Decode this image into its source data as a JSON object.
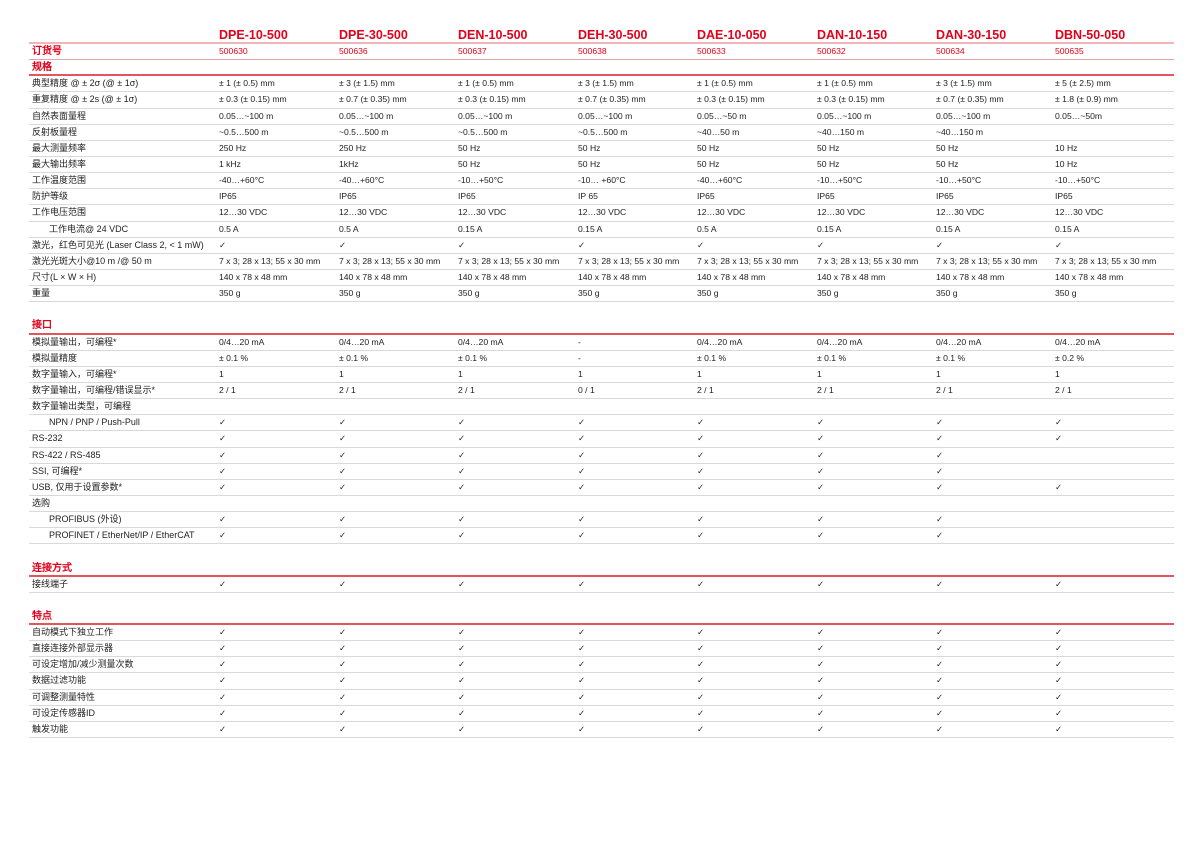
{
  "models": [
    "DPE-10-500",
    "DPE-30-500",
    "DEN-10-500",
    "DEH-30-500",
    "DAE-10-050",
    "DAN-10-150",
    "DAN-30-150",
    "DBN-50-050"
  ],
  "order": {
    "label": "订货号",
    "values": [
      "500630",
      "500636",
      "500637",
      "500638",
      "500633",
      "500632",
      "500634",
      "500635"
    ]
  },
  "check_symbol": "✓",
  "accent_color": "#e2001a",
  "sections": [
    {
      "title": "规格",
      "rows": [
        {
          "label": "典型精度 @ ± 2σ (@ ± 1σ)",
          "values": [
            "± 1 (± 0.5) mm",
            "± 3 (± 1.5) mm",
            "± 1 (± 0.5) mm",
            "± 3 (± 1.5) mm",
            "± 1 (± 0.5) mm",
            "± 1 (± 0.5) mm",
            "± 3 (± 1.5) mm",
            "± 5 (± 2.5) mm"
          ]
        },
        {
          "label": "重复精度 @ ± 2s (@ ± 1σ)",
          "values": [
            "± 0.3 (± 0.15) mm",
            "± 0.7 (± 0.35) mm",
            "± 0.3 (± 0.15) mm",
            "± 0.7 (± 0.35) mm",
            "± 0.3 (± 0.15) mm",
            "± 0.3 (± 0.15) mm",
            "± 0.7 (± 0.35) mm",
            "± 1.8 (± 0.9) mm"
          ]
        },
        {
          "label": "自然表面量程",
          "values": [
            "0.05…~100 m",
            "0.05…~100 m",
            "0.05…~100 m",
            "0.05…~100 m",
            "0.05…~50 m",
            "0.05…~100 m",
            "0.05…~100 m",
            "0.05…~50m"
          ]
        },
        {
          "label": "反射板量程",
          "values": [
            " ~0.5…500 m",
            " ~0.5…500 m",
            " ~0.5…500 m",
            " ~0.5…500 m",
            "~40…50 m",
            "~40…150 m",
            "~40…150 m",
            ""
          ]
        },
        {
          "label": "最大测量频率",
          "values": [
            "250 Hz",
            "250 Hz",
            "50 Hz",
            "50 Hz",
            "50 Hz",
            "50 Hz",
            "50 Hz",
            "10 Hz"
          ]
        },
        {
          "label": "最大输出频率",
          "values": [
            "1 kHz",
            "1kHz",
            "50 Hz",
            "50 Hz",
            "50 Hz",
            "50 Hz",
            "50 Hz",
            "10 Hz"
          ]
        },
        {
          "label": "工作温度范围",
          "values": [
            "-40…+60°C",
            "-40…+60°C",
            "-10…+50°C",
            "-10… +60°C",
            "-40…+60°C",
            "-10…+50°C",
            "-10…+50°C",
            "-10…+50°C"
          ]
        },
        {
          "label": "防护等级",
          "values": [
            "IP65",
            "IP65",
            "IP65",
            "IP 65",
            "IP65",
            "IP65",
            "IP65",
            "IP65"
          ]
        },
        {
          "label": "工作电压范围",
          "values": [
            "12…30 VDC",
            "12…30 VDC",
            "12…30 VDC",
            "12…30 VDC",
            "12…30 VDC",
            "12…30 VDC",
            "12…30 VDC",
            "12…30 VDC"
          ]
        },
        {
          "label": "工作电流@ 24 VDC",
          "sub": true,
          "values": [
            "0.5 A",
            "0.5 A",
            "0.15 A",
            "0.15 A",
            "0.5 A",
            "0.15 A",
            "0.15 A",
            "0.15 A"
          ]
        },
        {
          "label": "激光，红色可见光 (Laser Class 2, < 1 mW)",
          "values": [
            "✓",
            "✓",
            "✓",
            "✓",
            "✓",
            "✓",
            "✓",
            "✓"
          ]
        },
        {
          "label": "激光光斑大小@10 m /@ 50 m",
          "values": [
            "7 x 3; 28 x 13; 55 x 30 mm",
            "7 x 3; 28 x 13; 55 x 30 mm",
            "7 x 3; 28 x 13; 55 x 30 mm",
            "7 x 3; 28 x 13; 55 x 30 mm",
            "7 x 3; 28 x 13; 55 x 30 mm",
            "7 x 3; 28 x 13; 55 x 30 mm",
            "7 x 3; 28 x 13; 55 x 30 mm",
            "7 x 3; 28 x 13; 55 x 30 mm"
          ]
        },
        {
          "label": "尺寸(L × W × H)",
          "values": [
            "140 x 78 x 48 mm",
            "140 x 78 x 48 mm",
            "140 x 78 x 48 mm",
            "140 x 78 x 48 mm",
            "140 x 78 x 48 mm",
            "140 x 78 x 48 mm",
            "140 x 78 x 48 mm",
            "140 x 78 x 48 mm"
          ]
        },
        {
          "label": "重量",
          "values": [
            "350 g",
            "350 g",
            "350 g",
            "350 g",
            "350 g",
            "350 g",
            "350 g",
            "350 g"
          ]
        }
      ]
    },
    {
      "title": "接口",
      "rows": [
        {
          "label": "模拟量输出，可编程*",
          "values": [
            "0/4…20 mA",
            "0/4…20 mA",
            "0/4…20 mA",
            "-",
            "0/4…20 mA",
            "0/4…20 mA",
            "0/4…20 mA",
            "0/4…20 mA"
          ]
        },
        {
          "label": "模拟量精度",
          "values": [
            "± 0.1 %",
            "± 0.1 %",
            "± 0.1 %",
            "-",
            "± 0.1 %",
            "± 0.1 %",
            "± 0.1 %",
            "± 0.2 %"
          ]
        },
        {
          "label": "数字量输入，可编程*",
          "values": [
            "1",
            "1",
            "1",
            "1",
            "1",
            "1",
            "1",
            "1"
          ]
        },
        {
          "label": "数字量输出，可编程/错误显示*",
          "values": [
            "2 / 1",
            "2 / 1",
            "2 / 1",
            "0 / 1",
            "2 / 1",
            "2 / 1",
            "2 / 1",
            "2 / 1"
          ]
        },
        {
          "label": "数字量输出类型，可编程",
          "values": [
            "",
            "",
            "",
            "",
            "",
            "",
            "",
            ""
          ]
        },
        {
          "label": "NPN / PNP / Push-Pull",
          "sub": true,
          "values": [
            "✓",
            "✓",
            "✓",
            "✓",
            "✓",
            "✓",
            "✓",
            "✓"
          ]
        },
        {
          "label": "RS-232",
          "values": [
            "✓",
            "✓",
            "✓",
            "✓",
            "✓",
            "✓",
            "✓",
            "✓"
          ]
        },
        {
          "label": "RS-422 / RS-485",
          "values": [
            "✓",
            "✓",
            "✓",
            "✓",
            "✓",
            "✓",
            "✓",
            ""
          ]
        },
        {
          "label": "SSI, 可编程*",
          "values": [
            "✓",
            "✓",
            "✓",
            "✓",
            "✓",
            "✓",
            "✓",
            ""
          ]
        },
        {
          "label": "USB, 仅用于设置参数*",
          "values": [
            "✓",
            "✓",
            "✓",
            "✓",
            "✓",
            "✓",
            "✓",
            "✓"
          ]
        },
        {
          "label": "选购",
          "values": [
            "",
            "",
            "",
            "",
            "",
            "",
            "",
            ""
          ]
        },
        {
          "label": "PROFIBUS (外设)",
          "sub": true,
          "values": [
            "✓",
            "✓",
            "✓",
            "✓",
            "✓",
            "✓",
            "✓",
            ""
          ]
        },
        {
          "label": "PROFINET / EtherNet/IP / EtherCAT",
          "sub": true,
          "values": [
            "✓",
            "✓",
            "✓",
            "✓",
            "✓",
            "✓",
            "✓",
            ""
          ]
        }
      ]
    },
    {
      "title": "连接方式",
      "rows": [
        {
          "label": "接线端子",
          "values": [
            "✓",
            "✓",
            "✓",
            "✓",
            "✓",
            "✓",
            "✓",
            "✓"
          ]
        }
      ]
    },
    {
      "title": "特点",
      "rows": [
        {
          "label": "自动模式下独立工作",
          "values": [
            "✓",
            "✓",
            "✓",
            "✓",
            "✓",
            "✓",
            "✓",
            "✓"
          ]
        },
        {
          "label": "直接连接外部显示器",
          "values": [
            "✓",
            "✓",
            "✓",
            "✓",
            "✓",
            "✓",
            "✓",
            "✓"
          ]
        },
        {
          "label": "可设定增加/减少测量次数",
          "values": [
            "✓",
            "✓",
            "✓",
            "✓",
            "✓",
            "✓",
            "✓",
            "✓"
          ]
        },
        {
          "label": "数据过滤功能",
          "values": [
            "✓",
            "✓",
            "✓",
            "✓",
            "✓",
            "✓",
            "✓",
            "✓"
          ]
        },
        {
          "label": "可调整测量特性",
          "values": [
            "✓",
            "✓",
            "✓",
            "✓",
            "✓",
            "✓",
            "✓",
            "✓"
          ]
        },
        {
          "label": "可设定传感器ID",
          "values": [
            "✓",
            "✓",
            "✓",
            "✓",
            "✓",
            "✓",
            "✓",
            "✓"
          ]
        },
        {
          "label": "触发功能",
          "values": [
            "✓",
            "✓",
            "✓",
            "✓",
            "✓",
            "✓",
            "✓",
            "✓"
          ]
        }
      ]
    }
  ]
}
